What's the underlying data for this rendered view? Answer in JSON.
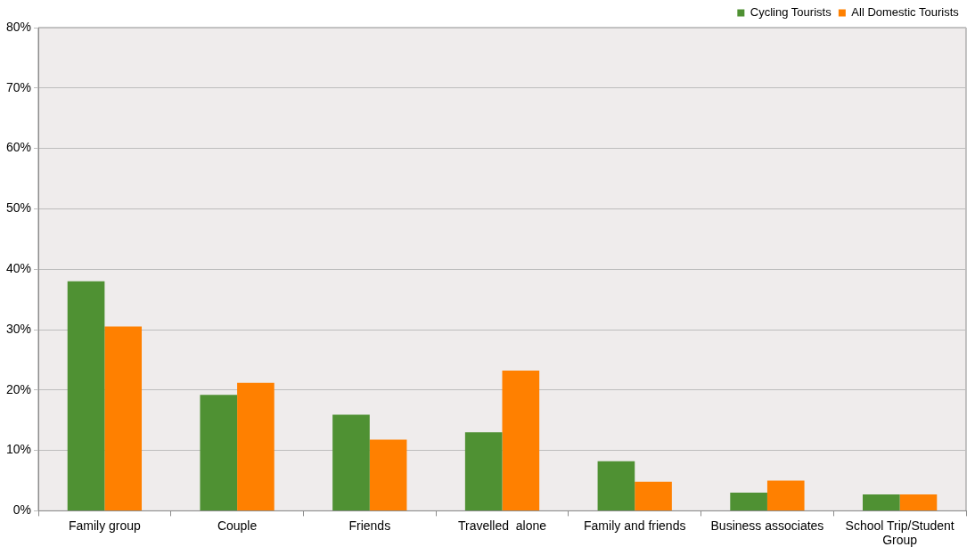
{
  "chart_data": {
    "type": "bar",
    "categories": [
      "Family group",
      "Couple",
      "Friends",
      "Travelled  alone",
      "Family and friends",
      "Business associates",
      "School Trip/Student Group"
    ],
    "series": [
      {
        "name": "Cycling Tourists",
        "color": "#4f9133",
        "values": [
          38,
          19.2,
          15.9,
          13,
          8.2,
          3,
          2.7
        ]
      },
      {
        "name": "All Domestic Tourists",
        "color": "#ff8000",
        "values": [
          30.5,
          21.2,
          11.8,
          23.2,
          4.8,
          5,
          2.7
        ]
      }
    ],
    "ylim": [
      0,
      80
    ],
    "yticks": [
      {
        "value": 0,
        "label": "0%"
      },
      {
        "value": 10,
        "label": "10%"
      },
      {
        "value": 20,
        "label": "20%"
      },
      {
        "value": 30,
        "label": "30%"
      },
      {
        "value": 40,
        "label": "40%"
      },
      {
        "value": 50,
        "label": "50%"
      },
      {
        "value": 60,
        "label": "60%"
      },
      {
        "value": 70,
        "label": "70%"
      },
      {
        "value": 80,
        "label": "80%"
      }
    ],
    "grid": "y",
    "legend": "top right"
  }
}
